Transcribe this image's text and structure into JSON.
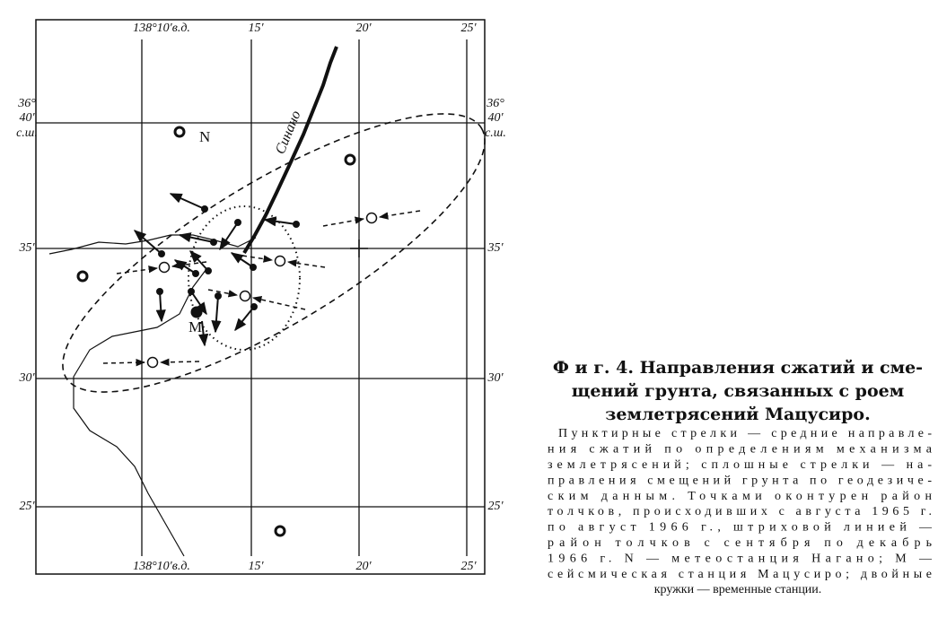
{
  "map": {
    "top_labels": [
      "138°10′в.д.",
      "15′",
      "20′",
      "25′"
    ],
    "bottom_labels": [
      "138°10′в.д.",
      "15′",
      "20′",
      "25′"
    ],
    "left_labels": [
      "36°",
      "40′",
      "с.ш.",
      "35′",
      "30′",
      "25′"
    ],
    "right_labels": [
      "36°",
      "40′",
      "с.ш.",
      "35′",
      "30′",
      "25′"
    ],
    "river": "Синано",
    "station_n": "N",
    "station_m": "M"
  },
  "caption": {
    "title": [
      "Ф и г. 4. Направления сжатий и сме-",
      "щений грунта, связанных с роем",
      "землетрясений Мацусиро."
    ],
    "body": [
      "Пунктирные стрелки — средние направле-",
      "ния сжатий по определениям механизма",
      "землетрясений; сплошные стрелки — на-",
      "правления смещений грунта по геодезиче-",
      "ским данным. Точками оконтурен район",
      "толчков, происходивших с августа 1965 г.",
      "по август 1966 г., штриховой линией —",
      "район толчков с сентября по декабрь",
      "1966 г. N — метеостанция Нагано; M —",
      "сейсмическая станция Мацусиро; двойные",
      "кружки — временные станции."
    ]
  }
}
